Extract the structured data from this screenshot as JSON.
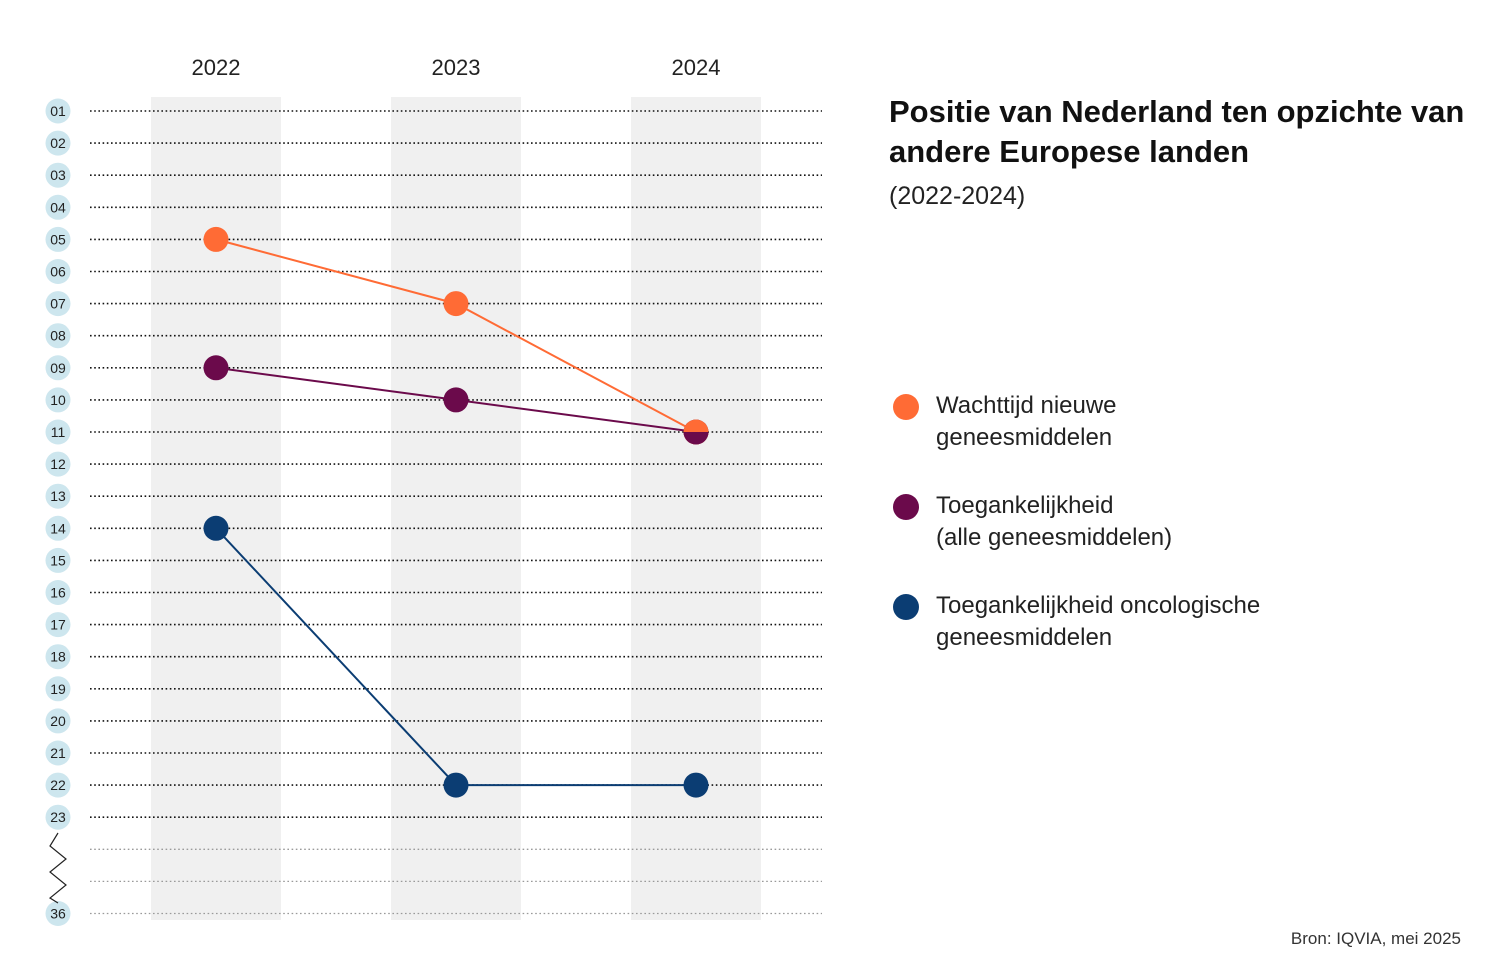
{
  "title": "Positie van Nederland ten opzichte van andere Europese landen",
  "subtitle": "(2022-2024)",
  "source": "Bron: IQVIA, mei 2025",
  "colors": {
    "wachttijd": "#ff6b35",
    "toegankelijkheid": "#6b0a4b",
    "oncologisch": "#0b3d73",
    "rank_badge": "#cde6ee",
    "column_band": "#f0f0f0"
  },
  "chart_data": {
    "type": "line",
    "x": [
      "2022",
      "2023",
      "2024"
    ],
    "ylabel": "",
    "y_ticks": [
      "01",
      "02",
      "03",
      "04",
      "05",
      "06",
      "07",
      "08",
      "09",
      "10",
      "11",
      "12",
      "13",
      "14",
      "15",
      "16",
      "17",
      "18",
      "19",
      "20",
      "21",
      "22",
      "23",
      "36"
    ],
    "y_axis_break": "between 23 and 36",
    "y_inverted": true,
    "grid": true,
    "legend_position": "right",
    "series": [
      {
        "name": "Wachttijd nieuwe\ngeneesmiddelen",
        "values": [
          5,
          7,
          11
        ],
        "color": "#ff6b35"
      },
      {
        "name": "Toegankelijkheid\n(alle geneesmiddelen)",
        "values": [
          9,
          10,
          11
        ],
        "color": "#6b0a4b"
      },
      {
        "name": "Toegankelijkheid oncologische\ngeneesmiddelen",
        "values": [
          14,
          22,
          22
        ],
        "color": "#0b3d73"
      }
    ]
  }
}
